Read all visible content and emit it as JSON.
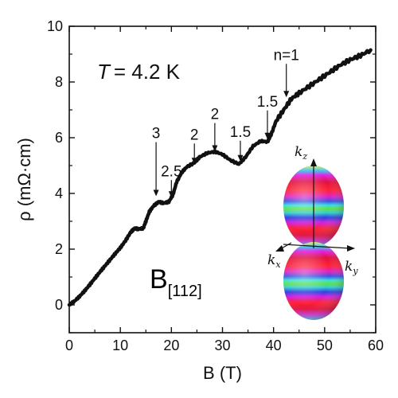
{
  "chart_data": {
    "type": "line",
    "xlabel": "B (T)",
    "ylabel": "ρ (mΩ·cm)",
    "xlim": [
      0,
      60
    ],
    "ylim": [
      -1,
      10
    ],
    "xticks": [
      0,
      10,
      20,
      30,
      40,
      50,
      60
    ],
    "yticks": [
      0,
      2,
      4,
      6,
      8,
      10
    ],
    "grid": false,
    "series": [
      {
        "x": [
          0,
          1,
          2,
          3,
          4,
          5,
          6,
          7,
          8,
          9,
          10,
          11,
          12,
          12.8,
          13.5,
          14.5,
          15,
          15.7,
          16.5,
          17.5,
          18.5,
          19.5,
          20.3,
          21,
          22,
          23,
          24.5,
          25.5,
          27,
          28.5,
          30,
          31.5,
          33.2,
          34.5,
          36,
          37.5,
          38.8,
          39.5,
          40.5,
          42,
          43.5,
          45,
          47,
          49,
          51,
          53,
          55,
          57,
          59
        ],
        "y": [
          0.0,
          0.13,
          0.3,
          0.5,
          0.72,
          0.95,
          1.18,
          1.4,
          1.62,
          1.84,
          2.05,
          2.3,
          2.6,
          2.75,
          2.72,
          2.75,
          3.0,
          3.35,
          3.55,
          3.7,
          3.65,
          3.7,
          3.95,
          4.4,
          4.75,
          4.95,
          5.1,
          5.3,
          5.45,
          5.5,
          5.4,
          5.2,
          5.05,
          5.3,
          5.7,
          5.88,
          5.85,
          6.1,
          6.6,
          7.0,
          7.4,
          7.6,
          7.85,
          8.1,
          8.35,
          8.6,
          8.8,
          8.95,
          9.15
        ]
      }
    ],
    "annotations": [
      {
        "text": "3",
        "x": 17,
        "y": 3.9
      },
      {
        "text": "2.5",
        "x": 20,
        "y": 3.85
      },
      {
        "text": "2",
        "x": 24.5,
        "y": 5.05
      },
      {
        "text": "2",
        "x": 28.5,
        "y": 5.5
      },
      {
        "text": "1.5",
        "x": 33.5,
        "y": 5.15
      },
      {
        "text": "1.5",
        "x": 38.8,
        "y": 5.95
      },
      {
        "text": "n=1",
        "x": 42.5,
        "y": 7.45
      }
    ],
    "temperature_label": "= 4.2 K",
    "temperature_symbol": "T",
    "field_label_main": "B",
    "field_label_sub": "[112]",
    "inset": {
      "k_z": "k",
      "k_z_sub": "z",
      "k_x": "k",
      "k_x_sub": "x",
      "k_y": "k",
      "k_y_sub": "y"
    }
  }
}
